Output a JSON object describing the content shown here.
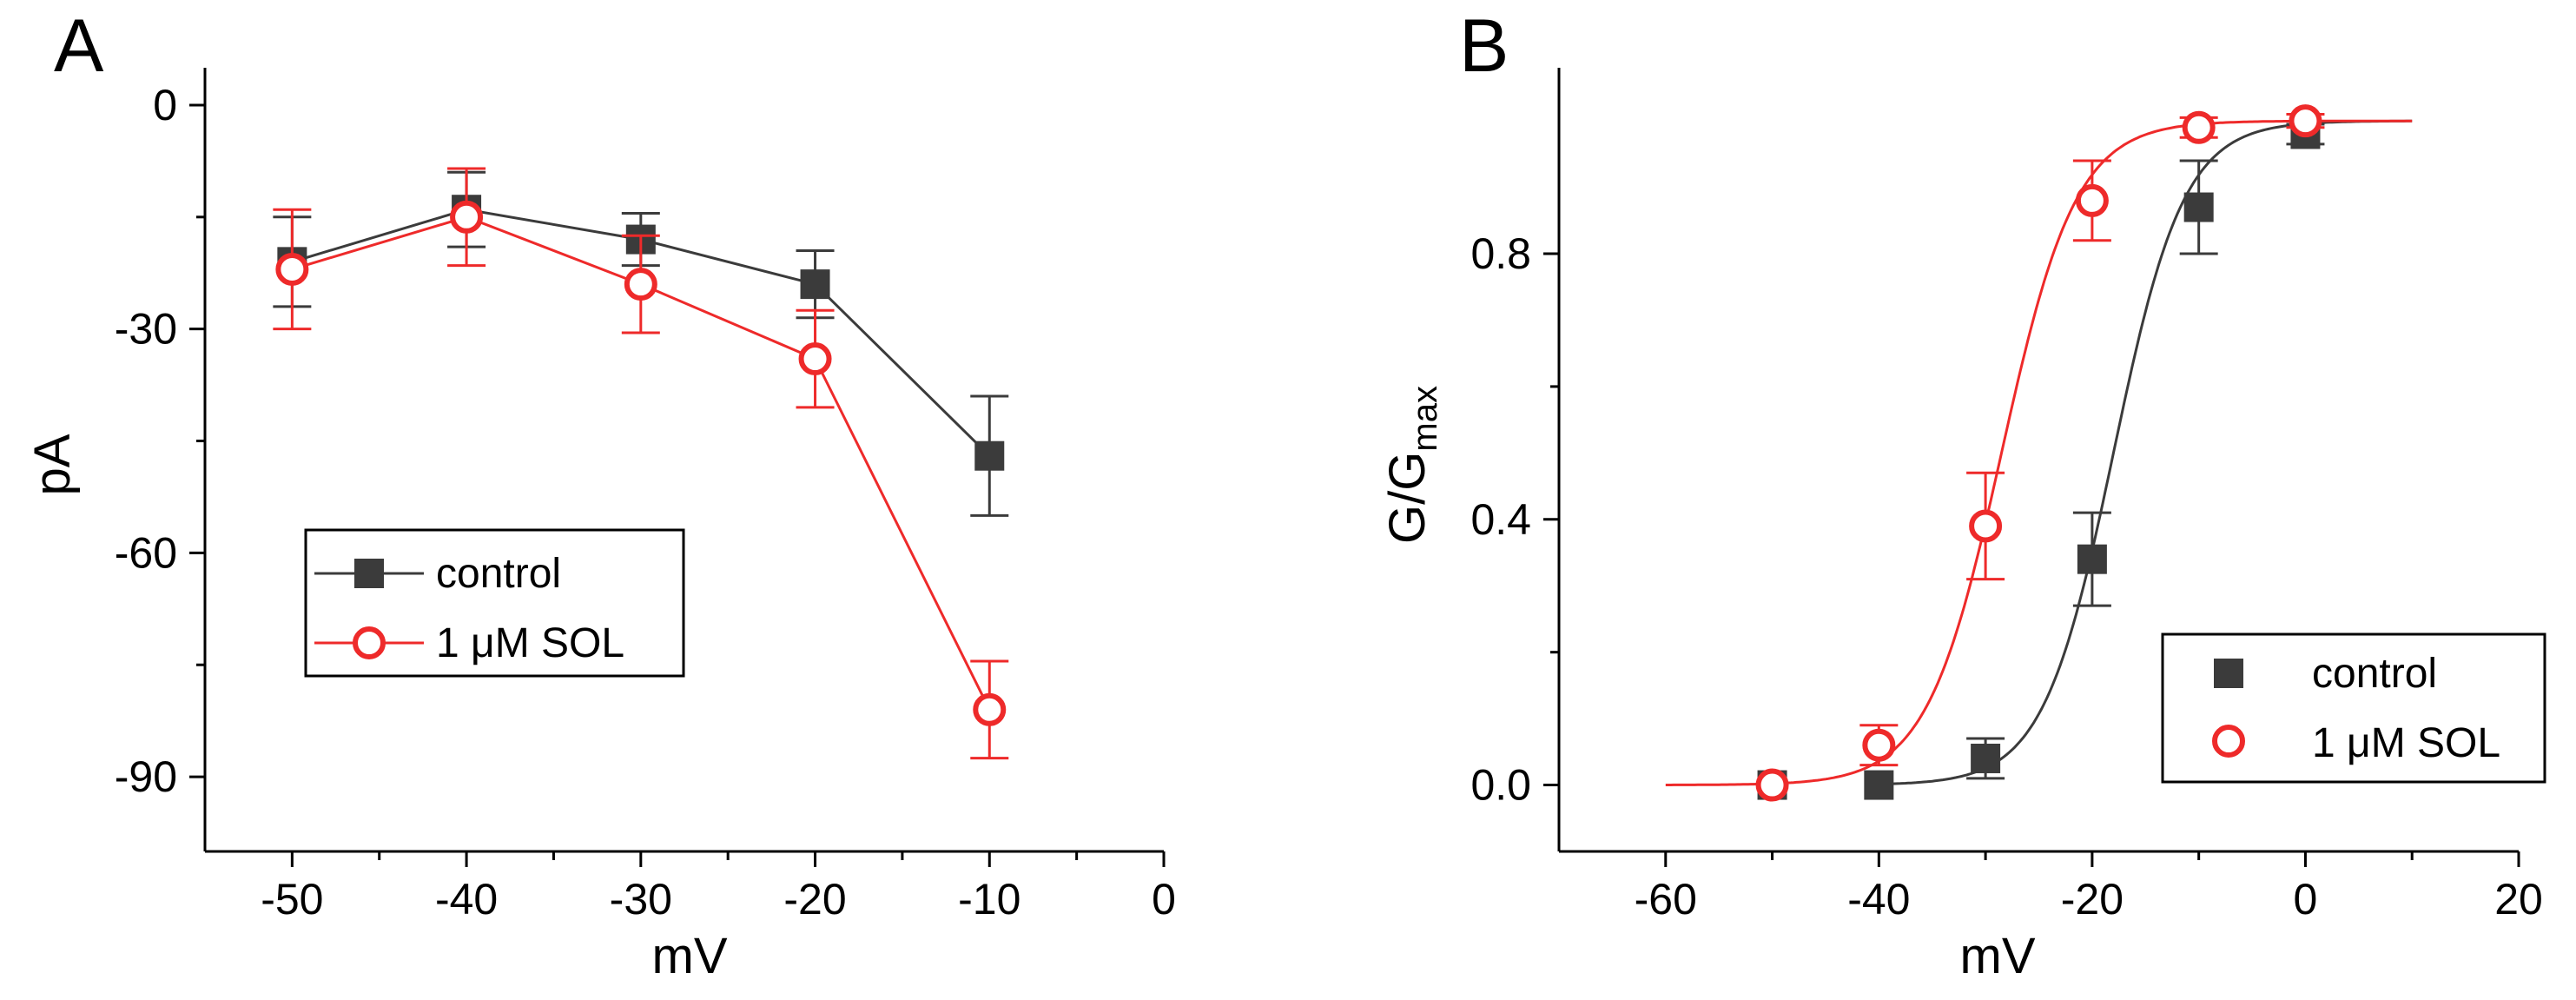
{
  "chart_data": [
    {
      "panel": "A",
      "type": "line",
      "xlabel": "mV",
      "ylabel": "pA",
      "xlim": [
        -55,
        0
      ],
      "ylim": [
        -100,
        5
      ],
      "xticks": [
        -50,
        -40,
        -30,
        -20,
        -10,
        0
      ],
      "yticks": [
        0,
        -30,
        -60,
        -90
      ],
      "x": [
        -50,
        -40,
        -30,
        -20,
        -10
      ],
      "series": [
        {
          "name": "control",
          "marker": "filled-square",
          "color": "#3b3b3b",
          "values": [
            -21,
            -14,
            -18,
            -24,
            -47
          ],
          "errors": [
            6,
            5,
            3.5,
            4.5,
            8
          ]
        },
        {
          "name": "1 μM SOL",
          "marker": "open-circle",
          "color": "#ee2a2a",
          "values": [
            -22,
            -15,
            -24,
            -34,
            -81
          ],
          "errors": [
            8,
            6.5,
            6.5,
            6.5,
            6.5
          ]
        }
      ],
      "legend": {
        "position": "middle-left"
      }
    },
    {
      "panel": "B",
      "type": "scatter",
      "xlabel": "mV",
      "ylabel": "G/G",
      "ylabel_sub": "max",
      "xlim": [
        -70,
        20
      ],
      "ylim": [
        -0.1,
        1.08
      ],
      "xticks": [
        -60,
        -40,
        -20,
        0,
        20
      ],
      "yticks": [
        0.0,
        0.4,
        0.8
      ],
      "ytick_labels": [
        "0.0",
        "0.4",
        "0.8"
      ],
      "x": [
        -50,
        -40,
        -30,
        -20,
        -10,
        0
      ],
      "series": [
        {
          "name": "control",
          "marker": "filled-square",
          "color": "#3b3b3b",
          "values": [
            0.0,
            0.0,
            0.04,
            0.34,
            0.87,
            0.98
          ],
          "errors": [
            0,
            0,
            0.03,
            0.07,
            0.07,
            0.015
          ],
          "fit": {
            "v_half": -18,
            "k": 3.3,
            "x_range": [
              -40,
              10
            ]
          }
        },
        {
          "name": "1 μM SOL",
          "marker": "open-circle",
          "color": "#ee2a2a",
          "values": [
            0.0,
            0.06,
            0.39,
            0.88,
            0.99,
            1.0
          ],
          "errors": [
            0,
            0.03,
            0.08,
            0.06,
            0.015,
            0.01
          ],
          "fit": {
            "v_half": -28.5,
            "k": 3.5,
            "x_range": [
              -60,
              10
            ]
          }
        }
      ],
      "legend": {
        "position": "bottom-right"
      }
    }
  ]
}
